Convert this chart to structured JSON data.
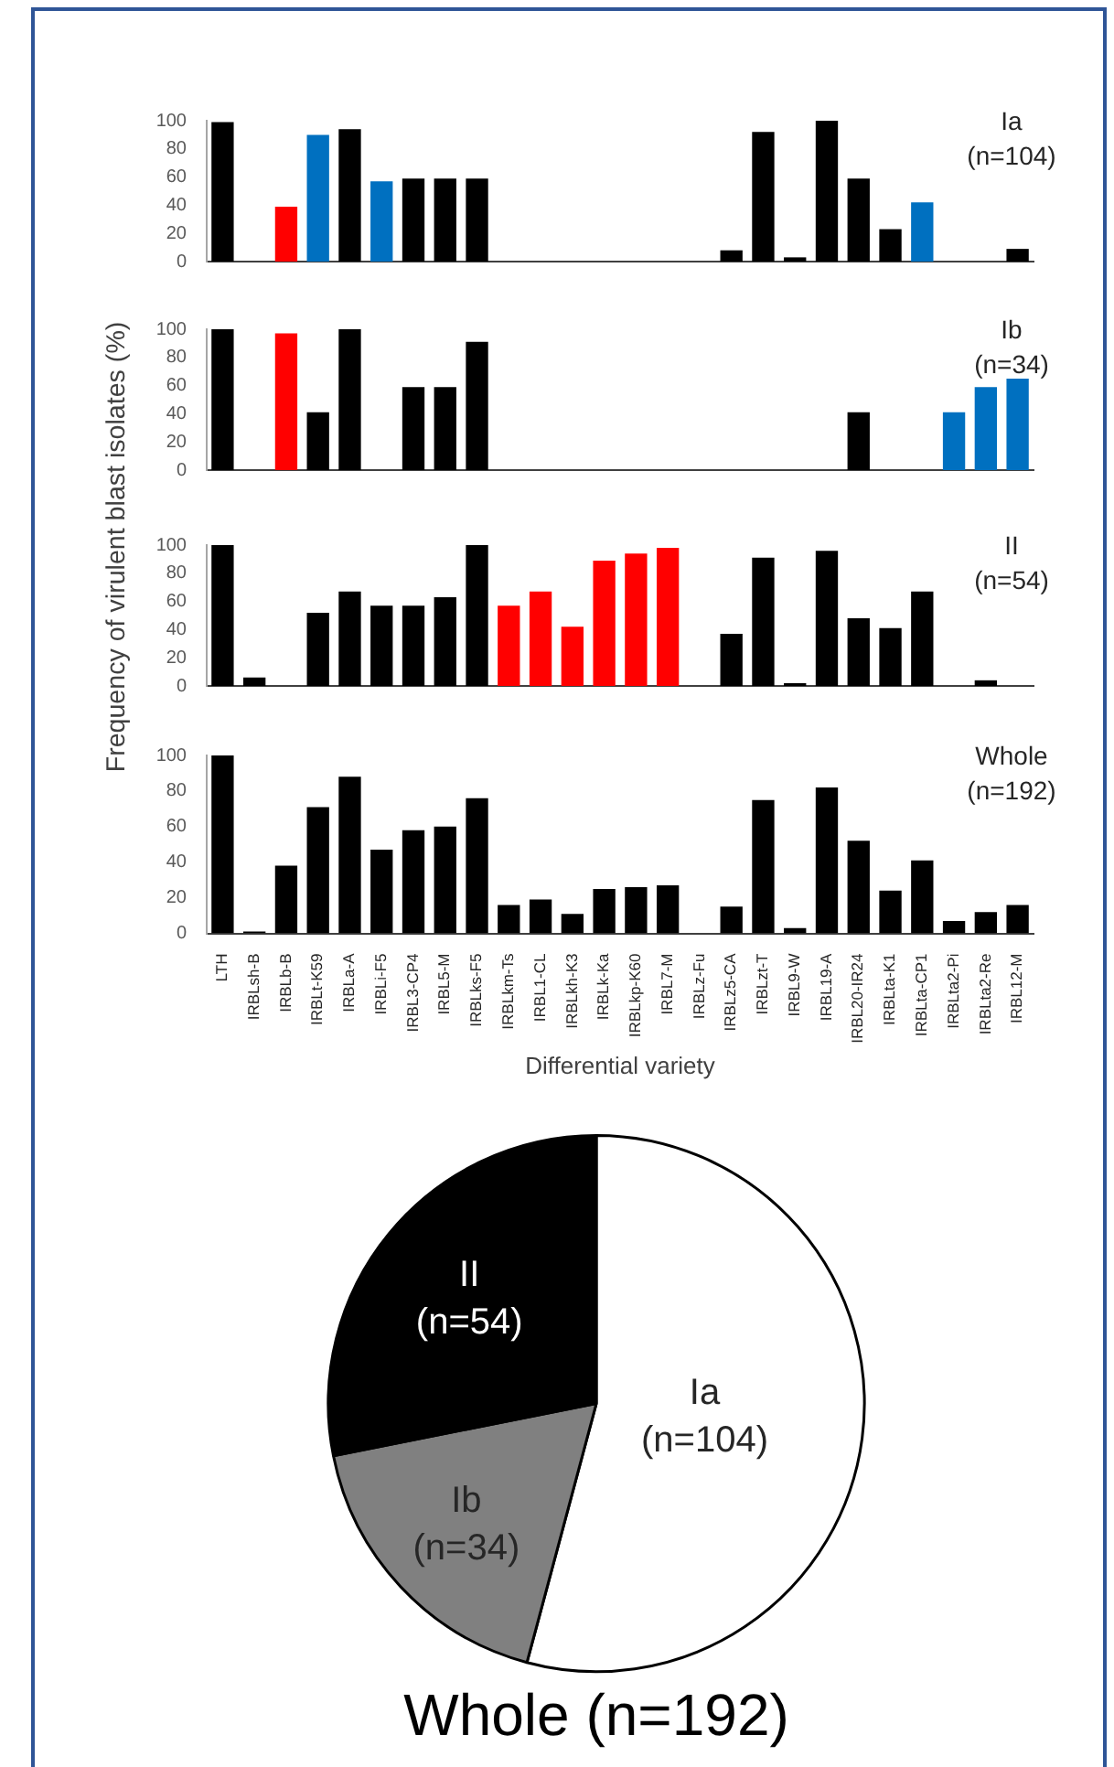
{
  "chart_data": [
    {
      "type": "bar",
      "categories": [
        null,
        null,
        null,
        null,
        null,
        null,
        null,
        null,
        null,
        null,
        null,
        null,
        null,
        null,
        null,
        null,
        null,
        null,
        null,
        null,
        null,
        null,
        null,
        null,
        null,
        null
      ],
      "values": [
        99,
        0,
        39,
        90,
        94,
        57,
        59,
        59,
        59,
        0,
        0,
        0,
        0,
        0,
        0,
        0,
        8,
        92,
        3,
        100,
        59,
        23,
        42,
        0,
        0,
        9
      ],
      "colors": [
        "#000000",
        "#000000",
        "#ff0000",
        "#0070c0",
        "#000000",
        "#0070c0",
        "#000000",
        "#000000",
        "#000000",
        "#000000",
        "#000000",
        "#000000",
        "#000000",
        "#000000",
        "#000000",
        "#000000",
        "#000000",
        "#000000",
        "#000000",
        "#000000",
        "#000000",
        "#000000",
        "#0070c0",
        "#000000",
        "#000000",
        "#000000"
      ],
      "ylim": [
        0,
        100
      ],
      "yticks": [
        0,
        20,
        40,
        60,
        80,
        100
      ],
      "tick_labels": "y",
      "annotations": [
        "Ia",
        "(n=104)"
      ]
    },
    {
      "type": "bar",
      "categories": [
        null,
        null,
        null,
        null,
        null,
        null,
        null,
        null,
        null,
        null,
        null,
        null,
        null,
        null,
        null,
        null,
        null,
        null,
        null,
        null,
        null,
        null,
        null,
        null,
        null,
        null
      ],
      "values": [
        100,
        0,
        97,
        41,
        100,
        0,
        59,
        59,
        91,
        0,
        0,
        0,
        0,
        0,
        0,
        0,
        0,
        0,
        0,
        0,
        41,
        0,
        0,
        41,
        59,
        65
      ],
      "colors": [
        "#000000",
        "#000000",
        "#ff0000",
        "#000000",
        "#000000",
        "#000000",
        "#000000",
        "#000000",
        "#000000",
        "#000000",
        "#000000",
        "#000000",
        "#000000",
        "#000000",
        "#000000",
        "#000000",
        "#000000",
        "#000000",
        "#000000",
        "#000000",
        "#000000",
        "#000000",
        "#000000",
        "#0070c0",
        "#0070c0",
        "#0070c0"
      ],
      "ylim": [
        0,
        100
      ],
      "yticks": [
        0,
        20,
        40,
        60,
        80,
        100
      ],
      "tick_labels": "y",
      "ylabel": "Frequency of virulent blast isolates (%)",
      "annotations": [
        "Ib",
        "(n=34)"
      ]
    },
    {
      "type": "bar",
      "categories": [
        null,
        null,
        null,
        null,
        null,
        null,
        null,
        null,
        null,
        null,
        null,
        null,
        null,
        null,
        null,
        null,
        null,
        null,
        null,
        null,
        null,
        null,
        null,
        null,
        null,
        null
      ],
      "values": [
        100,
        6,
        0,
        52,
        67,
        57,
        57,
        63,
        100,
        57,
        67,
        42,
        89,
        94,
        98,
        0,
        37,
        91,
        2,
        96,
        48,
        41,
        67,
        0,
        4,
        0
      ],
      "colors": [
        "#000000",
        "#000000",
        "#000000",
        "#000000",
        "#000000",
        "#000000",
        "#000000",
        "#000000",
        "#000000",
        "#ff0000",
        "#ff0000",
        "#ff0000",
        "#ff0000",
        "#ff0000",
        "#ff0000",
        "#000000",
        "#000000",
        "#000000",
        "#000000",
        "#000000",
        "#000000",
        "#000000",
        "#000000",
        "#000000",
        "#000000",
        "#000000"
      ],
      "ylim": [
        0,
        100
      ],
      "yticks": [
        0,
        20,
        40,
        60,
        80,
        100
      ],
      "tick_labels": "y",
      "annotations": [
        "II",
        "(n=54)"
      ]
    },
    {
      "type": "bar",
      "categories": [
        "LTH",
        "IRBLsh-B",
        "IRBLb-B",
        "IRBLt-K59",
        "IRBLa-A",
        "IRBLi-F5",
        "IRBL3-CP4",
        "IRBL5-M",
        "IRBLks-F5",
        "IRBLkm-Ts",
        "IRBL1-CL",
        "IRBLkh-K3",
        "IRBLk-Ka",
        "IRBLkp-K60",
        "IRBL7-M",
        "IRBLz-Fu",
        "IRBLz5-CA",
        "IRBLzt-T",
        "IRBL9-W",
        "IRBL19-A",
        "IRBL20-IR24",
        "IRBLta-K1",
        "IRBLta-CP1",
        "IRBLta2-Pi",
        "IRBLta2-Re",
        "IRBL12-M"
      ],
      "values": [
        100,
        1,
        38,
        71,
        88,
        47,
        58,
        60,
        76,
        16,
        19,
        11,
        25,
        26,
        27,
        0,
        15,
        75,
        3,
        82,
        52,
        24,
        41,
        7,
        12,
        16
      ],
      "color": "#000000",
      "ylim": [
        0,
        100
      ],
      "yticks": [
        0,
        20,
        40,
        60,
        80,
        100
      ],
      "xlabel": "Differential variety",
      "annotations": [
        "Whole",
        "(n=192)"
      ]
    },
    {
      "type": "pie",
      "title": "Whole (n=192)",
      "categories": [
        "Ia",
        "Ib",
        "II"
      ],
      "values": [
        104,
        34,
        54
      ],
      "colors": [
        "#ffffff",
        "#808080",
        "#000000"
      ],
      "value_labels": [
        "(n=104)",
        "(n=34)",
        "(n=54)"
      ]
    }
  ]
}
